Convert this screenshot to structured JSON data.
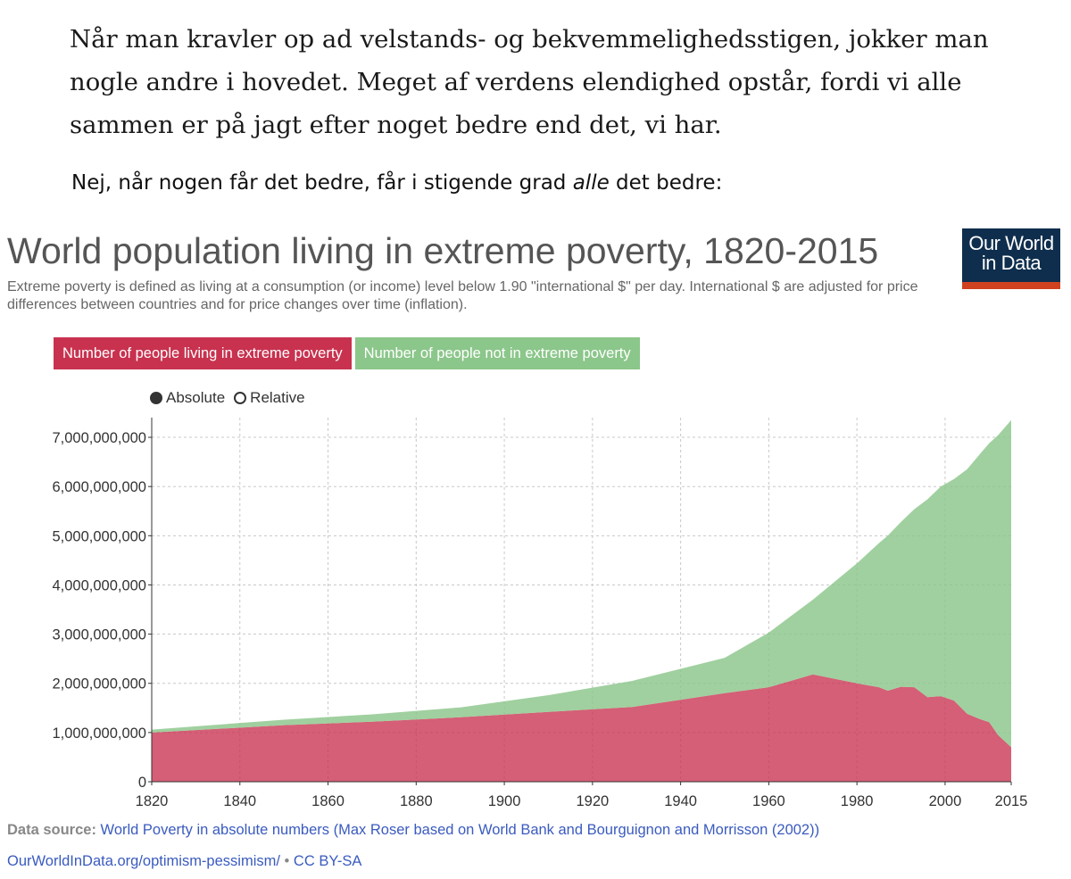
{
  "quote": {
    "lines": [
      "Når man kravler op ad velstands- og bekvemmelighedsstigen, jokker man",
      "nogle andre i hovedet. Meget af verdens elendighed opstår, fordi vi alle",
      "sammen er på jagt efter noget bedre end det, vi har."
    ]
  },
  "lead": {
    "before": "Nej, når nogen får det bedre, får i stigende grad ",
    "emphasis": "alle",
    "after": " det bedre:"
  },
  "logo": {
    "line1": "Our World",
    "line2": "in Data"
  },
  "tabs": {
    "poverty": "Number of people living in extreme poverty",
    "not_poverty": "Number of people not in extreme poverty"
  },
  "toggle": {
    "absolute": "Absolute",
    "relative": "Relative"
  },
  "footer": {
    "source_label": "Data source:",
    "source_text": "World Poverty in absolute numbers (Max Roser based on World Bank and Bourguignon and Morrisson (2002))",
    "url": "OurWorldInData.org/optimism-pessimism/",
    "separator": "•",
    "license": "CC BY-SA"
  },
  "colors": {
    "poverty": "#c8324f",
    "not_poverty": "#8bc68a",
    "logo_bg": "#0f2e4d",
    "logo_bar": "#d0421f"
  },
  "chart_data": {
    "type": "area",
    "stacked": true,
    "title": "World population living in extreme poverty, 1820-2015",
    "subtitle": "Extreme poverty is defined as living at a consumption (or income) level below 1.90 \"international $\" per day. International $ are adjusted for price differences between countries and for price changes over time (inflation).",
    "xlim": [
      1820,
      2015
    ],
    "ylim": [
      0,
      7400000000
    ],
    "x_ticks": [
      1820,
      1840,
      1860,
      1880,
      1900,
      1920,
      1940,
      1960,
      1980,
      2000,
      2015
    ],
    "y_ticks": [
      0,
      1000000000,
      2000000000,
      3000000000,
      4000000000,
      5000000000,
      6000000000,
      7000000000
    ],
    "y_tick_labels": [
      "0",
      "1,000,000,000",
      "2,000,000,000",
      "3,000,000,000",
      "4,000,000,000",
      "5,000,000,000",
      "6,000,000,000",
      "7,000,000,000"
    ],
    "grid": true,
    "x": [
      1820,
      1850,
      1870,
      1890,
      1910,
      1929,
      1950,
      1960,
      1970,
      1980,
      1985,
      1987,
      1990,
      1993,
      1996,
      1999,
      2002,
      2005,
      2008,
      2010,
      2012,
      2015
    ],
    "series": [
      {
        "name": "Number of people living in extreme poverty",
        "values": [
          1000000000,
          1150000000,
          1220000000,
          1310000000,
          1420000000,
          1520000000,
          1800000000,
          1920000000,
          2180000000,
          2000000000,
          1920000000,
          1850000000,
          1930000000,
          1920000000,
          1720000000,
          1740000000,
          1650000000,
          1380000000,
          1270000000,
          1210000000,
          950000000,
          700000000
        ]
      },
      {
        "name": "Number of people not in extreme poverty",
        "values": [
          60000000,
          110000000,
          150000000,
          200000000,
          340000000,
          530000000,
          720000000,
          1110000000,
          1520000000,
          2440000000,
          2930000000,
          3150000000,
          3350000000,
          3620000000,
          4020000000,
          4260000000,
          4500000000,
          4970000000,
          5400000000,
          5670000000,
          6090000000,
          6650000000
        ]
      }
    ]
  }
}
